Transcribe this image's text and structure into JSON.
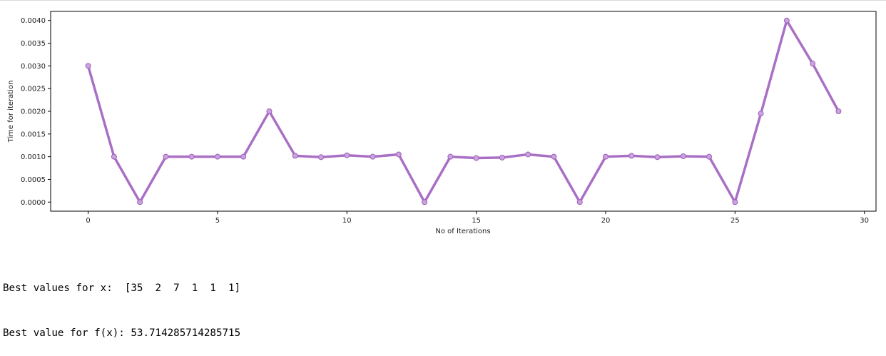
{
  "chart_data": {
    "type": "line",
    "title": "",
    "xlabel": "No of Iterations",
    "ylabel": "Time for iteration",
    "xlim": [
      -1.45,
      30.45
    ],
    "ylim": [
      -0.0002,
      0.0042
    ],
    "x_ticks": [
      0,
      5,
      10,
      15,
      20,
      25,
      30
    ],
    "y_ticks": [
      0.0,
      0.0005,
      0.001,
      0.0015,
      0.002,
      0.0025,
      0.003,
      0.0035,
      0.004
    ],
    "x_tick_labels": [
      "0",
      "5",
      "10",
      "15",
      "20",
      "25",
      "30"
    ],
    "y_tick_labels": [
      "0.0000",
      "0.0005",
      "0.0010",
      "0.0015",
      "0.0020",
      "0.0025",
      "0.0030",
      "0.0035",
      "0.0040"
    ],
    "grid": false,
    "series": [
      {
        "color": "#a05fbf",
        "marker": "circle",
        "x": [
          0,
          1,
          2,
          3,
          4,
          5,
          6,
          7,
          8,
          9,
          10,
          11,
          12,
          13,
          14,
          15,
          16,
          17,
          18,
          19,
          20,
          21,
          22,
          23,
          24,
          25,
          26,
          27,
          28,
          29
        ],
        "values": [
          0.003,
          0.001,
          0.0,
          0.001,
          0.001,
          0.001,
          0.001,
          0.002,
          0.00102,
          0.00099,
          0.00103,
          0.001,
          0.00105,
          0.0,
          0.001,
          0.00097,
          0.00098,
          0.00105,
          0.001,
          0.0,
          0.001,
          0.00102,
          0.00099,
          0.00101,
          0.001,
          0.0,
          0.00195,
          0.004,
          0.00305,
          0.002
        ]
      }
    ]
  },
  "output": {
    "line1": "Best values for x:  [35  2  7  1  1  1]",
    "line2": "Best value for f(x): 53.714285714285715"
  }
}
